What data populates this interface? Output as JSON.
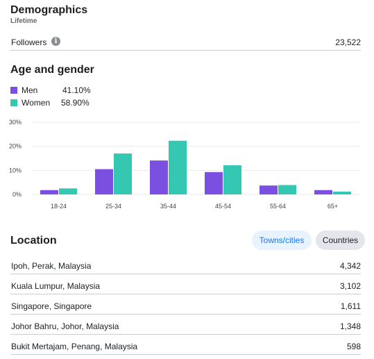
{
  "demographics": {
    "title": "Demographics",
    "subtitle": "Lifetime",
    "followers_label": "Followers",
    "followers_value": "23,522",
    "info_icon": "i"
  },
  "age_gender": {
    "title": "Age and gender",
    "legend": [
      {
        "name": "Men",
        "value": "41.10%",
        "color": "#7b4fe0"
      },
      {
        "name": "Women",
        "value": "58.90%",
        "color": "#34c7b2"
      }
    ]
  },
  "chart_data": {
    "type": "bar",
    "categories": [
      "18-24",
      "25-34",
      "35-44",
      "45-54",
      "55-64",
      "65+"
    ],
    "series": [
      {
        "name": "Men",
        "values": [
          1.8,
          10.5,
          14.1,
          9.3,
          3.7,
          1.8
        ],
        "color": "#7b4fe0"
      },
      {
        "name": "Women",
        "values": [
          2.5,
          17.0,
          22.3,
          12.1,
          3.9,
          1.2
        ],
        "color": "#34c7b2"
      }
    ],
    "y_ticks": [
      "0%",
      "10%",
      "20%",
      "30%"
    ],
    "ylim": [
      0,
      30
    ],
    "grid": true
  },
  "location": {
    "title": "Location",
    "tabs": {
      "towns": "Towns/cities",
      "countries": "Countries"
    },
    "rows": [
      {
        "name": "Ipoh, Perak, Malaysia",
        "value": "4,342"
      },
      {
        "name": "Kuala Lumpur, Malaysia",
        "value": "3,102"
      },
      {
        "name": "Singapore, Singapore",
        "value": "1,611"
      },
      {
        "name": "Johor Bahru, Johor, Malaysia",
        "value": "1,348"
      },
      {
        "name": "Bukit Mertajam, Penang, Malaysia",
        "value": "598"
      }
    ]
  }
}
